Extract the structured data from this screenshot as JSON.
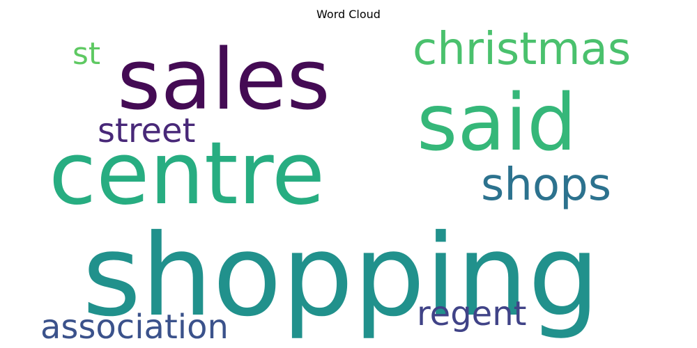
{
  "title": "Word Cloud",
  "chart_data": {
    "type": "wordcloud",
    "title": "Word Cloud",
    "colormap": "viridis",
    "background": "#ffffff",
    "words": [
      {
        "text": "shopping",
        "weight": 1.0,
        "color": "#21918c"
      },
      {
        "text": "centre",
        "weight": 0.75,
        "color": "#27ad81"
      },
      {
        "text": "sales",
        "weight": 0.7,
        "color": "#440b54"
      },
      {
        "text": "said",
        "weight": 0.62,
        "color": "#35b779"
      },
      {
        "text": "christmas",
        "weight": 0.32,
        "color": "#4ac16d"
      },
      {
        "text": "shops",
        "weight": 0.32,
        "color": "#2c728e"
      },
      {
        "text": "street",
        "weight": 0.25,
        "color": "#482878"
      },
      {
        "text": "association",
        "weight": 0.24,
        "color": "#3b528b"
      },
      {
        "text": "regent",
        "weight": 0.24,
        "color": "#404387"
      },
      {
        "text": "st",
        "weight": 0.22,
        "color": "#5ec962"
      }
    ]
  }
}
